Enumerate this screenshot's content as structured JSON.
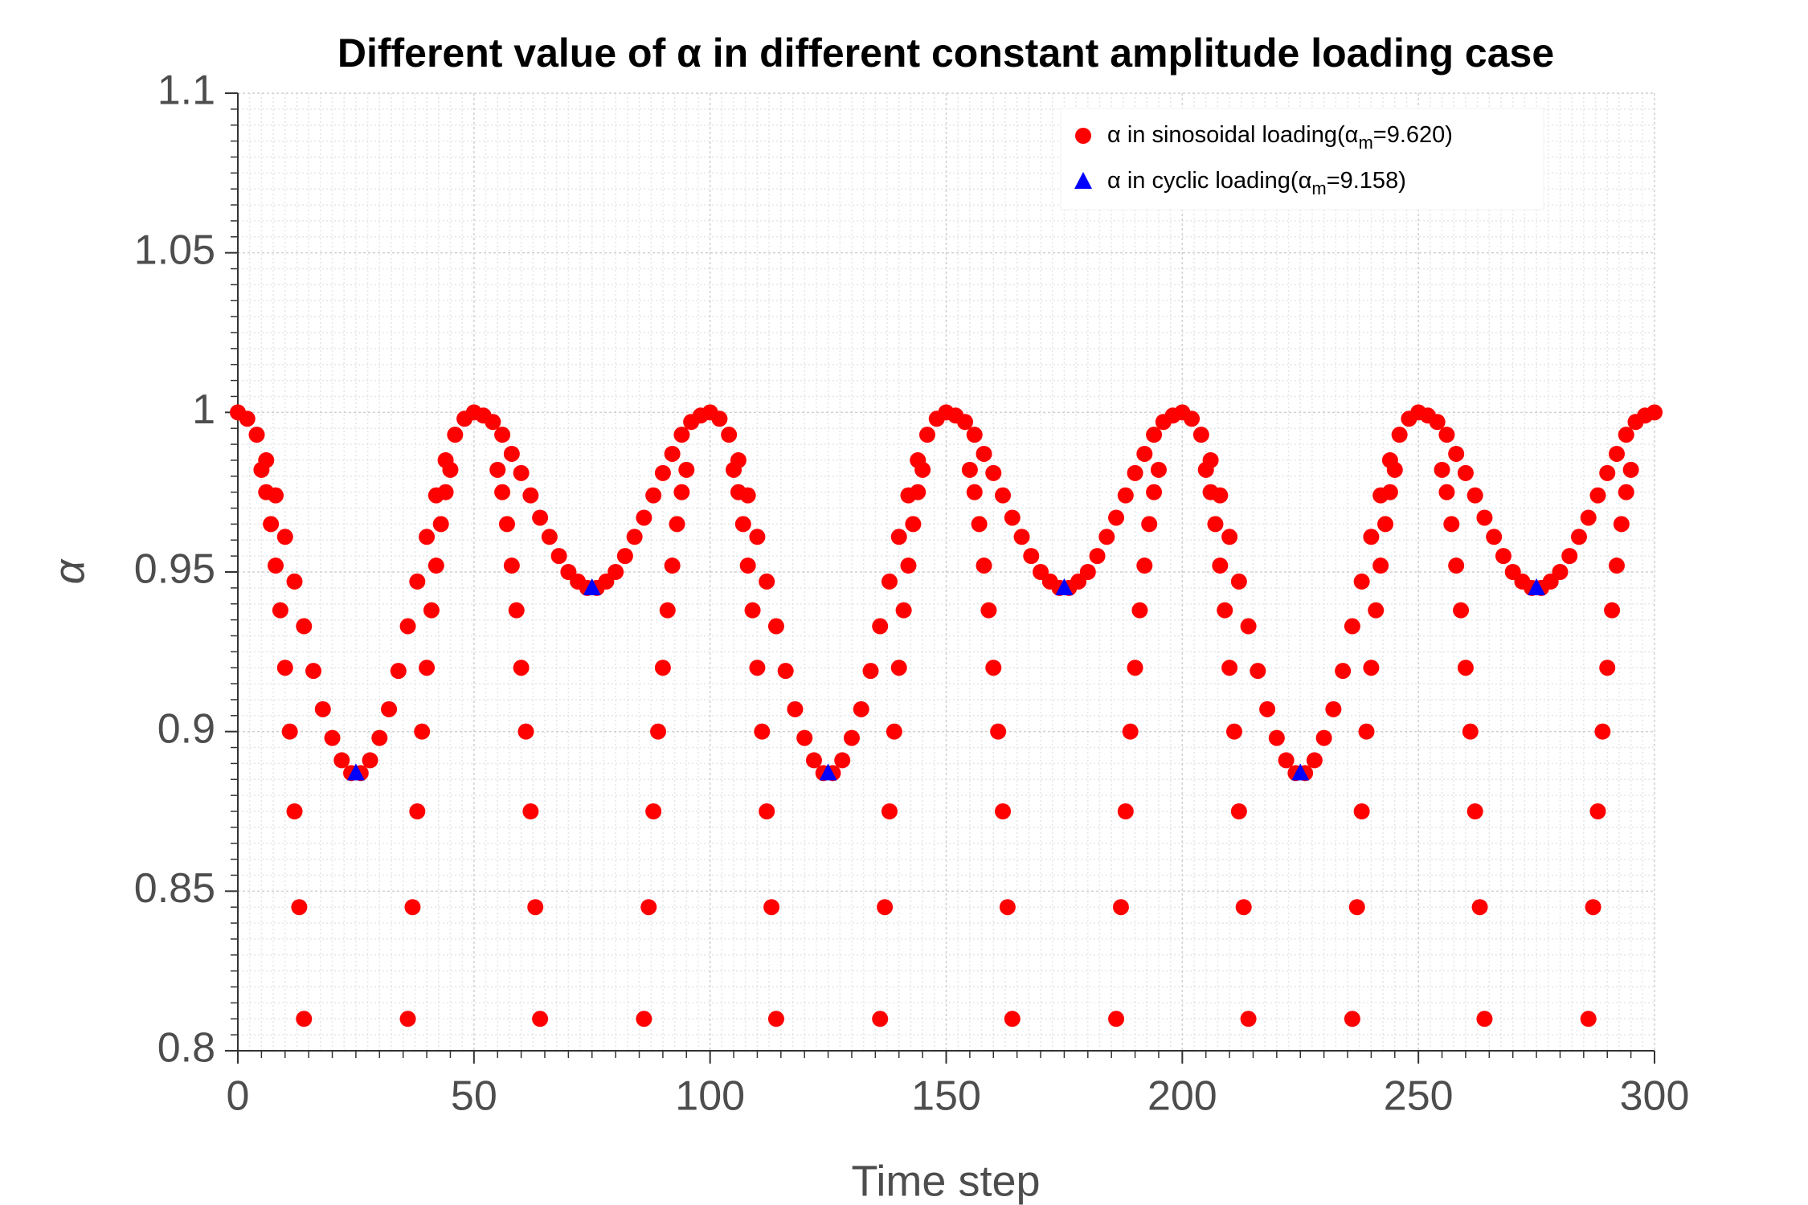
{
  "chart_data": {
    "type": "scatter",
    "title": "Different value of α in different constant amplitude loading case",
    "xlabel": "Time step",
    "ylabel": "α",
    "xlim": [
      0,
      300
    ],
    "xticks": [
      0,
      50,
      100,
      150,
      200,
      250,
      300
    ],
    "ylim": [
      0.8,
      1.1
    ],
    "yticks": [
      0.8,
      0.85,
      0.9,
      0.95,
      1,
      1.05,
      1.1
    ],
    "grid": true,
    "legend": "upper right",
    "series": [
      {
        "name": "α in sinosoidal loading(αm=9.620)",
        "color": "#ff0000",
        "marker": "circle",
        "x": [
          0,
          2,
          4,
          6,
          8,
          10,
          12,
          14,
          16,
          18,
          20,
          22,
          24,
          26,
          28,
          30,
          32,
          34,
          36,
          38,
          40,
          42,
          44,
          46,
          48,
          50,
          52,
          54,
          56,
          58,
          60,
          62,
          64,
          66,
          68,
          70,
          72,
          74,
          76,
          78,
          80,
          82,
          84,
          86,
          88,
          90,
          92,
          94,
          96,
          98,
          100,
          102,
          104,
          106,
          108,
          110,
          112,
          114,
          116,
          118,
          120,
          122,
          124,
          126,
          128,
          130,
          132,
          134,
          136,
          138,
          140,
          142,
          144,
          146,
          148,
          150,
          152,
          154,
          156,
          158,
          160,
          162,
          164,
          166,
          168,
          170,
          172,
          174,
          176,
          178,
          180,
          182,
          184,
          186,
          188,
          190,
          192,
          194,
          196,
          198,
          200,
          202,
          204,
          206,
          208,
          210,
          212,
          214,
          216,
          218,
          220,
          222,
          224,
          226,
          228,
          230,
          232,
          234,
          236,
          238,
          240,
          242,
          244,
          246,
          248,
          250,
          252,
          254,
          256,
          258,
          260,
          262,
          264,
          266,
          268,
          270,
          272,
          274,
          276,
          278,
          280,
          282,
          284,
          286,
          288,
          290,
          292,
          294,
          296,
          298,
          300,
          5,
          6,
          7,
          8,
          9,
          10,
          11,
          12,
          13,
          14,
          45,
          44,
          43,
          42,
          41,
          40,
          39,
          38,
          37,
          36,
          55,
          56,
          57,
          58,
          59,
          60,
          61,
          62,
          63,
          64,
          95,
          94,
          93,
          92,
          91,
          90,
          89,
          88,
          87,
          86,
          105,
          106,
          107,
          108,
          109,
          110,
          111,
          112,
          113,
          114,
          145,
          144,
          143,
          142,
          141,
          140,
          139,
          138,
          137,
          136,
          155,
          156,
          157,
          158,
          159,
          160,
          161,
          162,
          163,
          164,
          195,
          194,
          193,
          192,
          191,
          190,
          189,
          188,
          187,
          186,
          205,
          206,
          207,
          208,
          209,
          210,
          211,
          212,
          213,
          214,
          245,
          244,
          243,
          242,
          241,
          240,
          239,
          238,
          237,
          236,
          255,
          256,
          257,
          258,
          259,
          260,
          261,
          262,
          263,
          264,
          295,
          294,
          293,
          292,
          291,
          290,
          289,
          288,
          287,
          286
        ],
        "values": [
          1,
          0.998,
          0.993,
          0.985,
          0.974,
          0.961,
          0.947,
          0.933,
          0.919,
          0.907,
          0.898,
          0.891,
          0.887,
          0.887,
          0.891,
          0.898,
          0.907,
          0.919,
          0.933,
          0.947,
          0.961,
          0.974,
          0.985,
          0.993,
          0.998,
          1,
          0.999,
          0.997,
          0.993,
          0.987,
          0.981,
          0.974,
          0.967,
          0.961,
          0.955,
          0.95,
          0.947,
          0.945,
          0.945,
          0.947,
          0.95,
          0.955,
          0.961,
          0.967,
          0.974,
          0.981,
          0.987,
          0.993,
          0.997,
          0.999,
          1,
          0.998,
          0.993,
          0.985,
          0.974,
          0.961,
          0.947,
          0.933,
          0.919,
          0.907,
          0.898,
          0.891,
          0.887,
          0.887,
          0.891,
          0.898,
          0.907,
          0.919,
          0.933,
          0.947,
          0.961,
          0.974,
          0.985,
          0.993,
          0.998,
          1,
          0.999,
          0.997,
          0.993,
          0.987,
          0.981,
          0.974,
          0.967,
          0.961,
          0.955,
          0.95,
          0.947,
          0.945,
          0.945,
          0.947,
          0.95,
          0.955,
          0.961,
          0.967,
          0.974,
          0.981,
          0.987,
          0.993,
          0.997,
          0.999,
          1,
          0.998,
          0.993,
          0.985,
          0.974,
          0.961,
          0.947,
          0.933,
          0.919,
          0.907,
          0.898,
          0.891,
          0.887,
          0.887,
          0.891,
          0.898,
          0.907,
          0.919,
          0.933,
          0.947,
          0.961,
          0.974,
          0.985,
          0.993,
          0.998,
          1,
          0.999,
          0.997,
          0.993,
          0.987,
          0.981,
          0.974,
          0.967,
          0.961,
          0.955,
          0.95,
          0.947,
          0.945,
          0.945,
          0.947,
          0.95,
          0.955,
          0.961,
          0.967,
          0.974,
          0.981,
          0.987,
          0.993,
          0.997,
          0.999,
          1,
          0.982,
          0.975,
          0.965,
          0.952,
          0.938,
          0.92,
          0.9,
          0.875,
          0.845,
          0.81,
          0.982,
          0.975,
          0.965,
          0.952,
          0.938,
          0.92,
          0.9,
          0.875,
          0.845,
          0.81,
          0.982,
          0.975,
          0.965,
          0.952,
          0.938,
          0.92,
          0.9,
          0.875,
          0.845,
          0.81,
          0.982,
          0.975,
          0.965,
          0.952,
          0.938,
          0.92,
          0.9,
          0.875,
          0.845,
          0.81,
          0.982,
          0.975,
          0.965,
          0.952,
          0.938,
          0.92,
          0.9,
          0.875,
          0.845,
          0.81,
          0.982,
          0.975,
          0.965,
          0.952,
          0.938,
          0.92,
          0.9,
          0.875,
          0.845,
          0.81,
          0.982,
          0.975,
          0.965,
          0.952,
          0.938,
          0.92,
          0.9,
          0.875,
          0.845,
          0.81,
          0.982,
          0.975,
          0.965,
          0.952,
          0.938,
          0.92,
          0.9,
          0.875,
          0.845,
          0.81,
          0.982,
          0.975,
          0.965,
          0.952,
          0.938,
          0.92,
          0.9,
          0.875,
          0.845,
          0.81,
          0.982,
          0.975,
          0.965,
          0.952,
          0.938,
          0.92,
          0.9,
          0.875,
          0.845,
          0.81,
          0.982,
          0.975,
          0.965,
          0.952,
          0.938,
          0.92,
          0.9,
          0.875,
          0.845,
          0.81,
          0.982,
          0.975,
          0.965,
          0.952,
          0.938,
          0.92,
          0.9,
          0.875,
          0.845,
          0.81
        ]
      },
      {
        "name": "α in cyclic loading(αm=9.158)",
        "color": "#0000ff",
        "marker": "triangle",
        "x": [
          25,
          75,
          125,
          175,
          225,
          275
        ],
        "values": [
          0.887,
          0.945,
          0.887,
          0.945,
          0.887,
          0.945
        ]
      }
    ]
  }
}
